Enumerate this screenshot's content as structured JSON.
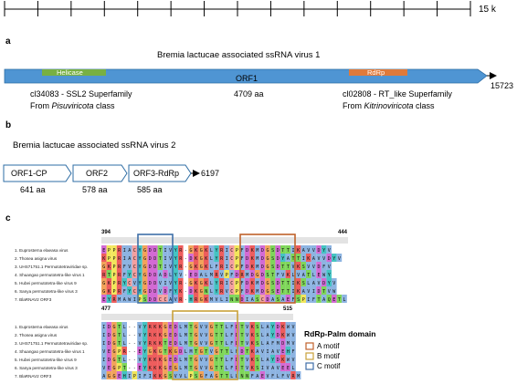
{
  "scale": {
    "label": "15 k"
  },
  "panel_a": {
    "letter": "a",
    "title": "Bremia lactucae associated ssRNA virus 1",
    "domains": {
      "helicase": "Helicase",
      "rdrp": "RdRp"
    },
    "orf_label": "ORF1",
    "aa_count": "4709 aa",
    "end_coord": "15723",
    "helicase_note": {
      "line1": "cl34083 - SSL2 Superfamily",
      "from": "From ",
      "class_name": "Pisuviricota",
      "class_word": " class"
    },
    "rdrp_note": {
      "line1": "cl02808 - RT_like Superfamily",
      "from": "From ",
      "class_name": "Kitrinoviricota",
      "class_word": " class"
    }
  },
  "panel_b": {
    "letter": "b",
    "title": "Bremia lactucae associated ssRNA virus 2",
    "orfs": [
      {
        "name": "ORF1-CP",
        "aa": "641 aa"
      },
      {
        "name": "ORF2",
        "aa": "578 aa"
      },
      {
        "name": "ORF3-RdRp",
        "aa": "585 aa"
      }
    ],
    "end_coord": "6197"
  },
  "panel_c": {
    "letter": "c",
    "block1": {
      "start": "394",
      "end": "444"
    },
    "block2": {
      "start": "477",
      "end": "515"
    },
    "sequences": [
      "1. Euprosterna elaeasa virus",
      "2. Thosea asigna virus",
      "3. UHS71751.1 Permutotetraviridae sp.",
      "4. Shuangao permutotetra-like virus 1",
      "5. Hubei permutotetra-like virus 9",
      "6. Sanya permutotetra-like virus 3",
      "7. BlaRNAV2 ORF3"
    ],
    "legend": {
      "title": "RdRp-Palm domain",
      "items": [
        {
          "label": "A motif",
          "color": "#c0622b"
        },
        {
          "label": "B motif",
          "color": "#c9a13a"
        },
        {
          "label": "C motif",
          "color": "#3f6fa8"
        }
      ]
    },
    "residues1": [
      "EPPRIACYGDDTIVYR-GKGKLYRICPFDKMDGSDTTIKAVVDYV",
      "KPPRIACYGDDTIVYR-DKGKLYRICPFDKMDGSDYATTIKAVVDYV",
      "GKPRFVCYGDDTIVYR-GKGKLFRICPFDKMDGSDTTVKSVVDFV",
      "RTPRFYCYGDDADLYV-EDALMRVPFDRMDGDSTFVKLVATLEWY",
      "GKPRYCVYGDDVIVYR-GKGKLYRICPFDKMDGSDTTIKSLAVDYV",
      "GKPRFYCYGDDVDFYK-DKGNLYRVCPFDKMDGSETTIKAVIDTVW",
      "EYRMAWIPSDDCCAVR-HRGKMVLINNDIASCDASAEFSPIFTAQETL"
    ],
    "residues2": [
      "IDGTL--VYRKKGEDLMTGVVGTTLFDTVKSLAYDKWV",
      "IDGTL--VYRKKGEDLMTGVVGTTLFDTVKSLAYDKWV",
      "IDGTL--VYRKKTEDLMTGVVGTTLFDTVKSLAFMDMV",
      "VEGPR--EYGKGTKGDLMTGTVGTTLFDTKAVIAVEHF",
      "IDGTL--VYKKKGEDLMTGVVGTTLFDTVKSLAYDKWV",
      "VEGPT--EYKKKGEGLMTGVVGTTLFDTVKSIVAVEEL",
      "AGGEHIPIFIKKGSVVLPSGFAGTTLLNNFAEVFLFVRM"
    ]
  }
}
